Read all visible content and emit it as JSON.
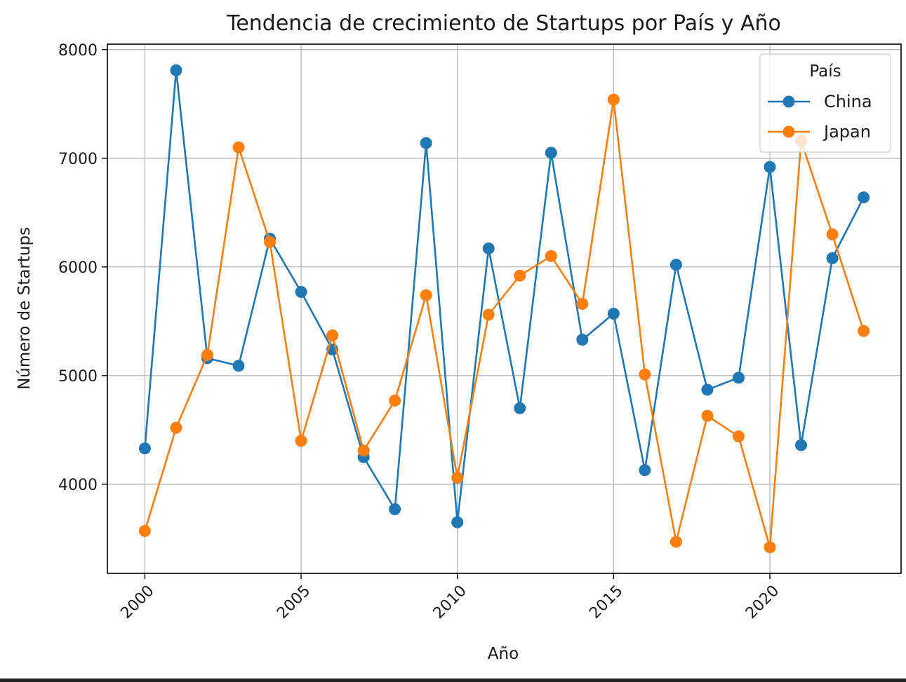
{
  "chart_data": {
    "type": "line",
    "title": "Tendencia de crecimiento de Startups por País y Año",
    "xlabel": "Año",
    "ylabel": "Número de Startups",
    "xlim": [
      1998.8,
      2024.2
    ],
    "ylim": [
      3180,
      8050
    ],
    "x_ticks": [
      2000,
      2005,
      2010,
      2015,
      2020
    ],
    "y_ticks": [
      4000,
      5000,
      6000,
      7000,
      8000
    ],
    "grid": true,
    "legend": {
      "title": "País",
      "placement": "top-right"
    },
    "x": [
      2000,
      2001,
      2002,
      2003,
      2004,
      2005,
      2006,
      2007,
      2008,
      2009,
      2010,
      2011,
      2012,
      2013,
      2014,
      2015,
      2016,
      2017,
      2018,
      2019,
      2020,
      2021,
      2022,
      2023
    ],
    "series": [
      {
        "name": "China",
        "color": "#1f77b4",
        "values": [
          4330,
          7810,
          5160,
          5090,
          6260,
          5770,
          5240,
          4250,
          3770,
          7140,
          3650,
          6170,
          4700,
          7050,
          5330,
          5570,
          4130,
          6020,
          4870,
          4980,
          6920,
          4360,
          6080,
          6640
        ]
      },
      {
        "name": "Japan",
        "color": "#ff7f0e",
        "values": [
          3570,
          4520,
          5190,
          7100,
          6230,
          4400,
          5370,
          4310,
          4770,
          5740,
          4060,
          5560,
          5920,
          6100,
          5660,
          7540,
          5010,
          3470,
          4630,
          4440,
          3420,
          7160,
          6300,
          5410
        ]
      }
    ]
  }
}
